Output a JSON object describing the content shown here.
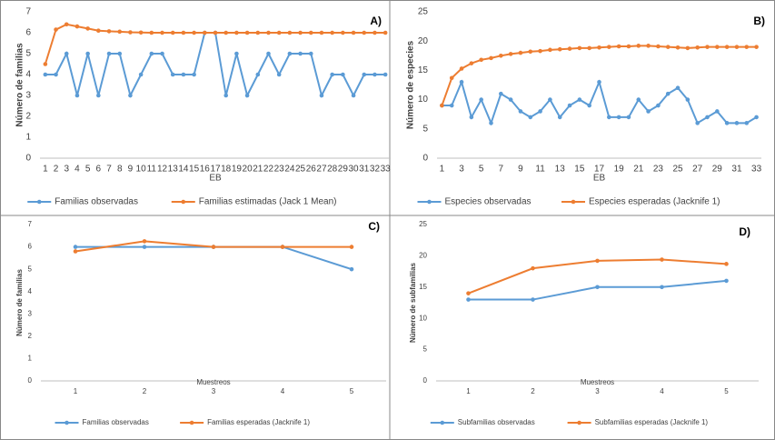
{
  "chart_data": [
    {
      "type": "line",
      "label": "A)",
      "ylabel": "Número de familias",
      "xlabel": "EB",
      "categories": [
        1,
        2,
        3,
        4,
        5,
        6,
        7,
        8,
        9,
        10,
        11,
        12,
        13,
        14,
        15,
        16,
        17,
        18,
        19,
        20,
        21,
        22,
        23,
        24,
        25,
        26,
        27,
        28,
        29,
        30,
        31,
        32,
        33
      ],
      "series": [
        {
          "name": "Familias observadas",
          "color": "#5b9bd5",
          "values": [
            4,
            4,
            5,
            3,
            5,
            3,
            5,
            5,
            3,
            4,
            5,
            5,
            4,
            4,
            4,
            6,
            6,
            3,
            5,
            3,
            4,
            5,
            4,
            5,
            5,
            5,
            3,
            4,
            4,
            3,
            4,
            4,
            4
          ]
        },
        {
          "name": "Familias estimadas (Jack 1 Mean)",
          "color": "#ed7d31",
          "values": [
            4.5,
            6.15,
            6.4,
            6.3,
            6.2,
            6.1,
            6.07,
            6.05,
            6.02,
            6.01,
            6,
            6,
            6,
            6,
            6,
            6,
            6,
            6,
            6,
            6,
            6,
            6,
            6,
            6,
            6,
            6,
            6,
            6,
            6,
            6,
            6,
            6,
            6
          ]
        }
      ],
      "ylim": [
        0,
        7
      ],
      "yticks": [
        0,
        1,
        2,
        3,
        4,
        5,
        6,
        7
      ],
      "legend": "bottom"
    },
    {
      "type": "line",
      "label": "B)",
      "ylabel": "Número de especies",
      "xlabel": "EB",
      "categories": [
        1,
        null,
        3,
        null,
        5,
        null,
        7,
        null,
        9,
        null,
        11,
        null,
        13,
        null,
        15,
        null,
        17,
        null,
        19,
        null,
        21,
        null,
        23,
        null,
        25,
        null,
        27,
        null,
        29,
        null,
        31,
        null,
        33
      ],
      "series": [
        {
          "name": "Especies observadas",
          "color": "#5b9bd5",
          "values": [
            9,
            9,
            13,
            7,
            10,
            6,
            11,
            10,
            8,
            7,
            8,
            10,
            7,
            9,
            10,
            9,
            13,
            7,
            7,
            7,
            10,
            8,
            9,
            11,
            12,
            10,
            6,
            7,
            8,
            6,
            6,
            6,
            7
          ]
        },
        {
          "name": "Especies esperadas (Jacknife 1)",
          "color": "#ed7d31",
          "values": [
            9,
            13.7,
            15.3,
            16.2,
            16.8,
            17.1,
            17.5,
            17.8,
            18,
            18.2,
            18.3,
            18.5,
            18.6,
            18.7,
            18.8,
            18.8,
            18.9,
            19,
            19.1,
            19.1,
            19.2,
            19.2,
            19.1,
            19,
            18.9,
            18.8,
            18.9,
            19,
            19,
            19,
            19,
            19,
            19
          ]
        }
      ],
      "ylim": [
        0,
        25
      ],
      "yticks": [
        0,
        5,
        10,
        15,
        20,
        25
      ],
      "legend": "bottom"
    },
    {
      "type": "line",
      "label": "C)",
      "ylabel": "Número de familias",
      "xlabel": "Muestreos",
      "categories": [
        1,
        2,
        3,
        4,
        5
      ],
      "series": [
        {
          "name": "Familias observadas",
          "color": "#5b9bd5",
          "values": [
            6,
            6,
            6,
            6,
            5
          ]
        },
        {
          "name": "Familias esperadas (Jacknife 1)",
          "color": "#ed7d31",
          "values": [
            5.8,
            6.25,
            6,
            6,
            6
          ]
        }
      ],
      "ylim": [
        0,
        7
      ],
      "yticks": [
        0,
        1,
        2,
        3,
        4,
        5,
        6,
        7
      ],
      "legend": "bottom"
    },
    {
      "type": "line",
      "label": "D)",
      "ylabel": "Número de subfamilias",
      "xlabel": "Muestreos",
      "categories": [
        1,
        2,
        3,
        4,
        5
      ],
      "series": [
        {
          "name": "Subfamilias observadas",
          "color": "#5b9bd5",
          "values": [
            13,
            13,
            15,
            15,
            16
          ]
        },
        {
          "name": "Subfamilias esperadas (Jacknife 1)",
          "color": "#ed7d31",
          "values": [
            14,
            18,
            19.2,
            19.4,
            18.7
          ]
        }
      ],
      "ylim": [
        0,
        25
      ],
      "yticks": [
        0,
        5,
        10,
        15,
        20,
        25
      ],
      "legend": "bottom"
    }
  ]
}
